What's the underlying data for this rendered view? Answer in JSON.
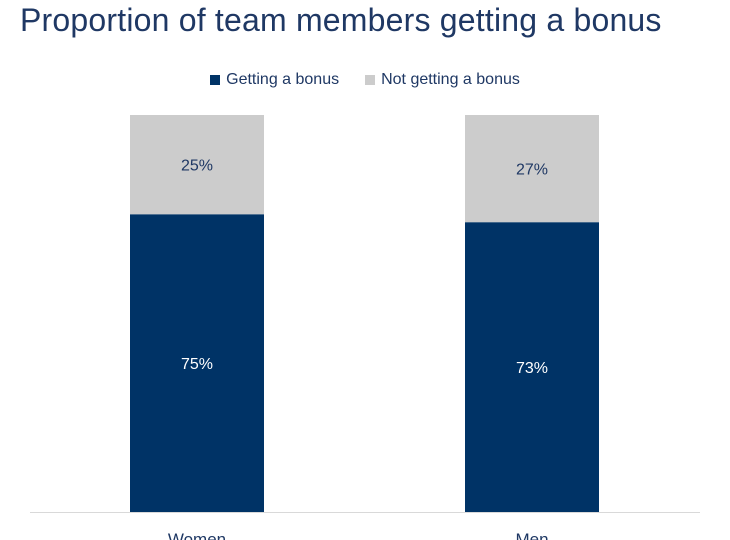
{
  "chart_data": {
    "type": "bar",
    "stacked": true,
    "title": "Proportion of team members getting a bonus",
    "categories": [
      "Women",
      "Men"
    ],
    "series": [
      {
        "name": "Getting a bonus",
        "values": [
          75,
          73
        ],
        "labels": [
          "75%",
          "73%"
        ],
        "color": "#003366"
      },
      {
        "name": "Not getting a bonus",
        "values": [
          25,
          27
        ],
        "labels": [
          "25%",
          "27%"
        ],
        "color": "#cccccc"
      }
    ],
    "ylim": [
      0,
      100
    ],
    "grid": false,
    "legend_position": "top"
  }
}
